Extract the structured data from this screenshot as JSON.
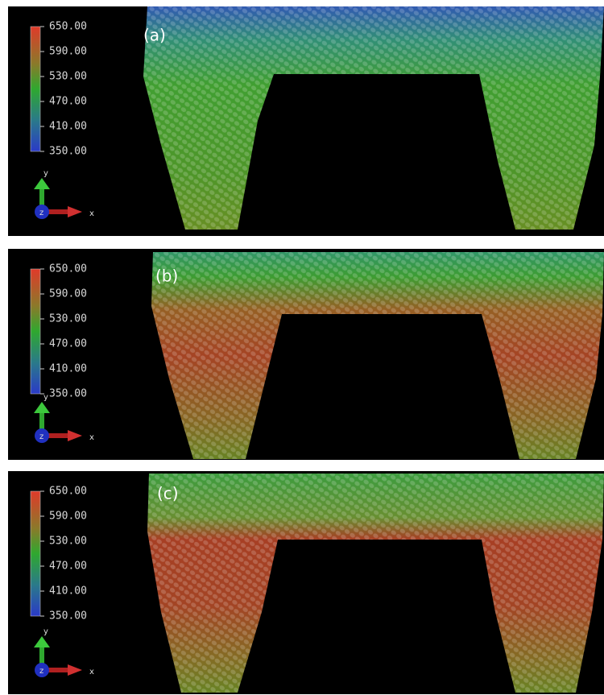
{
  "panels": [
    {
      "label": "(a)",
      "colorbar": {
        "ticks": [
          "650.00",
          "590.00",
          "530.00",
          "470.00",
          "410.00",
          "350.00"
        ]
      },
      "axes": {
        "y": "y",
        "z": "z",
        "x": "x"
      }
    },
    {
      "label": "(b)",
      "colorbar": {
        "ticks": [
          "650.00",
          "590.00",
          "530.00",
          "470.00",
          "410.00",
          "350.00"
        ]
      },
      "axes": {
        "y": "y",
        "z": "z",
        "x": "x"
      }
    },
    {
      "label": "(c)",
      "colorbar": {
        "ticks": [
          "650.00",
          "590.00",
          "530.00",
          "470.00",
          "410.00",
          "350.00"
        ]
      },
      "axes": {
        "y": "y",
        "z": "z",
        "x": "x"
      }
    }
  ]
}
